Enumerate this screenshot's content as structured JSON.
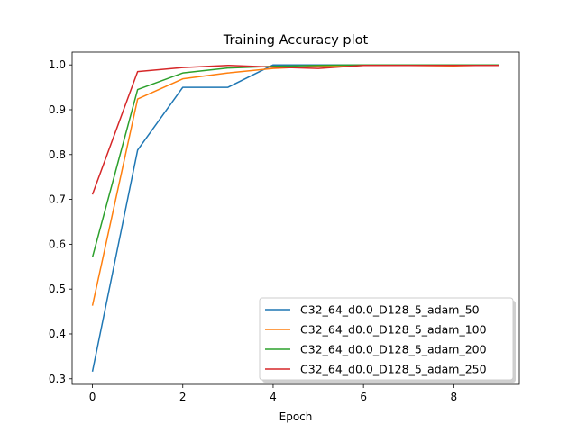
{
  "chart_data": {
    "type": "line",
    "title": "Training Accuracy plot",
    "xlabel": "Epoch",
    "ylabel": "",
    "xlim": [
      -0.45,
      9.45
    ],
    "ylim": [
      0.2875,
      1.0285
    ],
    "xticks": [
      0,
      2,
      4,
      6,
      8
    ],
    "yticks": [
      0.3,
      0.4,
      0.5,
      0.6,
      0.7,
      0.8,
      0.9,
      1.0
    ],
    "ytick_labels": [
      "0.3",
      "0.4",
      "0.5",
      "0.6",
      "0.7",
      "0.8",
      "0.9",
      "1.0"
    ],
    "x": [
      0,
      1,
      2,
      3,
      4,
      5,
      6,
      7,
      8,
      9
    ],
    "grid": false,
    "legend_position": "lower-right",
    "series": [
      {
        "name": "C32_64_d0.0_D128_5_adam_50",
        "color": "#1f77b4",
        "values": [
          0.316,
          0.81,
          0.95,
          0.95,
          1.0,
          1.0,
          1.0,
          1.0,
          1.0,
          1.0
        ]
      },
      {
        "name": "C32_64_d0.0_D128_5_adam_100",
        "color": "#ff7f0e",
        "values": [
          0.463,
          0.924,
          0.969,
          0.982,
          0.992,
          0.997,
          0.999,
          0.999,
          0.998,
          1.0
        ]
      },
      {
        "name": "C32_64_d0.0_D128_5_adam_200",
        "color": "#2ca02c",
        "values": [
          0.571,
          0.945,
          0.982,
          0.993,
          0.997,
          0.999,
          1.0,
          1.0,
          1.0,
          1.0
        ]
      },
      {
        "name": "C32_64_d0.0_D128_5_adam_250",
        "color": "#d62728",
        "values": [
          0.711,
          0.985,
          0.994,
          0.999,
          0.995,
          0.992,
          0.999,
          0.999,
          0.999,
          0.999
        ]
      }
    ]
  }
}
